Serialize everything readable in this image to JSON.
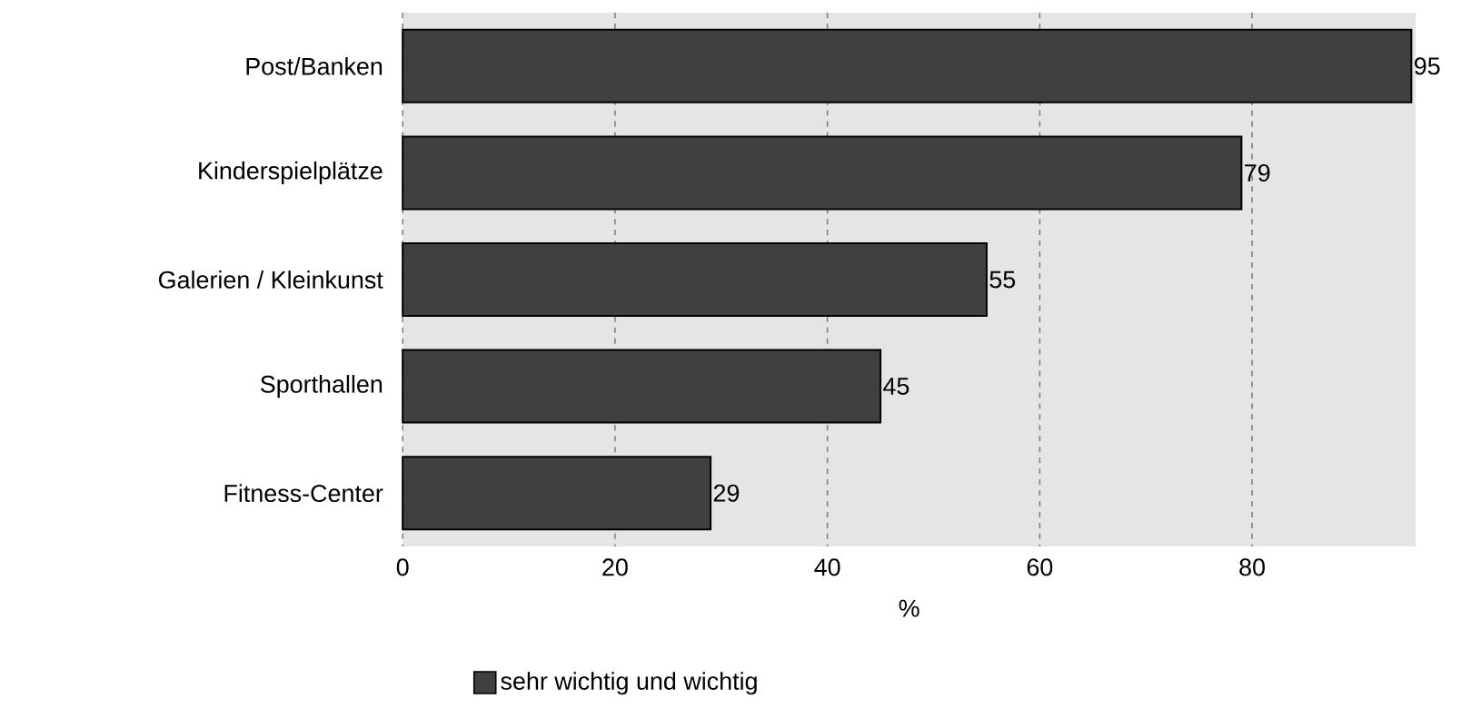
{
  "chart_data": {
    "type": "bar",
    "orientation": "horizontal",
    "categories": [
      "Post/Banken",
      "Kinderspielplätze",
      "Galerien / Kleinkunst",
      "Sporthallen",
      "Fitness-Center"
    ],
    "series": [
      {
        "name": "sehr wichtig und wichtig",
        "color": "#404040",
        "values": [
          95,
          79,
          55,
          45,
          29
        ]
      }
    ],
    "xlabel": "%",
    "xlim": [
      0,
      95.4
    ],
    "xticks": [
      0,
      20,
      40,
      60,
      80
    ],
    "grid": "x",
    "legend": "bottom left",
    "data_labels": true
  }
}
